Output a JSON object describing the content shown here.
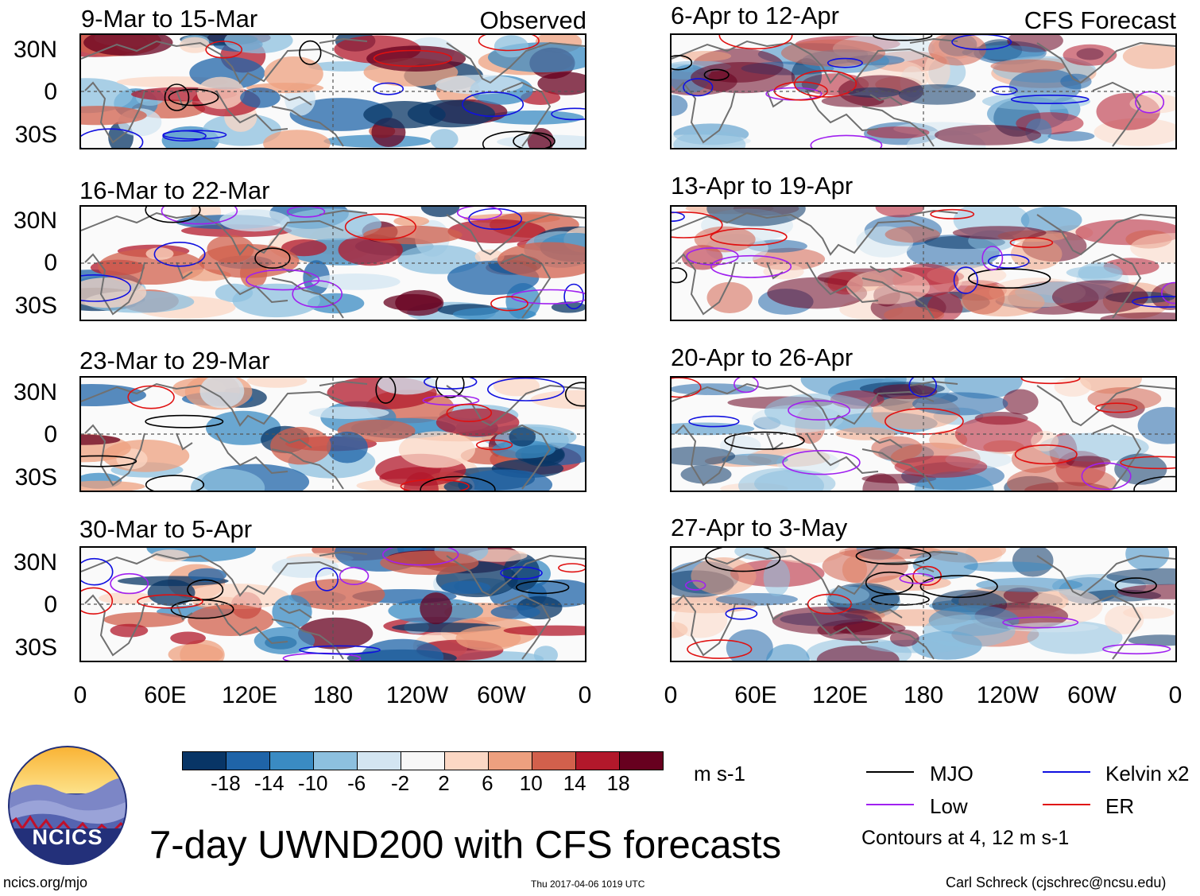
{
  "header_labels": {
    "left_label": "Observed",
    "right_label": "CFS Forecast"
  },
  "panels": [
    {
      "title": "9-Mar to 15-Mar",
      "column": "observed"
    },
    {
      "title": "16-Mar to 22-Mar",
      "column": "observed"
    },
    {
      "title": "23-Mar to 29-Mar",
      "column": "observed"
    },
    {
      "title": "30-Mar to 5-Apr",
      "column": "observed"
    },
    {
      "title": "6-Apr to 12-Apr",
      "column": "forecast"
    },
    {
      "title": "13-Apr to 19-Apr",
      "column": "forecast"
    },
    {
      "title": "20-Apr to 26-Apr",
      "column": "forecast"
    },
    {
      "title": "27-Apr to 3-May",
      "column": "forecast"
    }
  ],
  "y_ticks": [
    "30N",
    "0",
    "30S"
  ],
  "x_ticks": [
    "0",
    "60E",
    "120E",
    "180",
    "120W",
    "60W",
    "0"
  ],
  "colorbar": {
    "ticks": [
      "-18",
      "-14",
      "-10",
      "-6",
      "-2",
      "2",
      "6",
      "10",
      "14",
      "18"
    ],
    "units": "m s-1",
    "colors": [
      "#083566",
      "#1f64a8",
      "#3a8bc3",
      "#8dc0df",
      "#d3e5f1",
      "#f7f7f7",
      "#fbd7c4",
      "#eea07f",
      "#d2604c",
      "#b2182b",
      "#67001f"
    ]
  },
  "legend": {
    "items": [
      {
        "label": "MJO",
        "color": "#000000"
      },
      {
        "label": "Kelvin x2",
        "color": "#1010e0"
      },
      {
        "label": "Low",
        "color": "#a020f0"
      },
      {
        "label": "ER",
        "color": "#e01010"
      }
    ],
    "note": "Contours at 4, 12 m s-1"
  },
  "title": "7-day UWND200 with CFS forecasts",
  "logo_text": "NCICS",
  "footer": {
    "url": "ncics.org/mjo",
    "timestamp": "Thu 2017-04-06 1019 UTC",
    "credit": "Carl Schreck (cjschrec@ncsu.edu)"
  },
  "colors": {
    "coast": "#707070",
    "ref_lines": "#555555"
  }
}
